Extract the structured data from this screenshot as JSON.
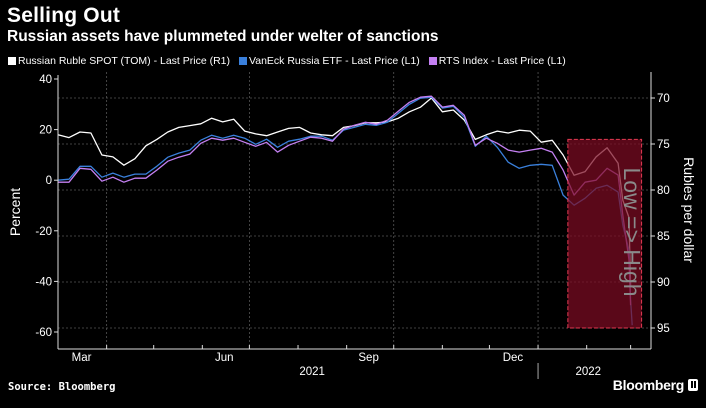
{
  "header": {
    "title": "Selling Out",
    "subtitle": "Russian assets have plummeted under welter of sanctions"
  },
  "footer": {
    "source": "Source: Bloomberg",
    "brand": "Bloomberg"
  },
  "colors": {
    "background": "#000000",
    "ruble": "#ffffff",
    "etf": "#3a80dc",
    "rts": "#c480f2",
    "highlight_fill": "#7d0b22",
    "highlight_border": "#e23a52",
    "annotation": "#8a8a8a"
  },
  "chart_data": {
    "type": "line",
    "title": "Selling Out",
    "subtitle": "Russian assets have plummeted under welter of sanctions",
    "legend_position": "top-left",
    "grid": true,
    "x": [
      "2021-03-01",
      "2021-03-08",
      "2021-03-15",
      "2021-03-22",
      "2021-03-29",
      "2021-04-05",
      "2021-04-12",
      "2021-04-19",
      "2021-04-26",
      "2021-05-03",
      "2021-05-10",
      "2021-05-17",
      "2021-05-24",
      "2021-05-31",
      "2021-06-07",
      "2021-06-14",
      "2021-06-21",
      "2021-06-28",
      "2021-07-05",
      "2021-07-12",
      "2021-07-19",
      "2021-07-26",
      "2021-08-02",
      "2021-08-09",
      "2021-08-16",
      "2021-08-23",
      "2021-08-30",
      "2021-09-06",
      "2021-09-13",
      "2021-09-20",
      "2021-09-27",
      "2021-10-04",
      "2021-10-11",
      "2021-10-18",
      "2021-10-25",
      "2021-11-01",
      "2021-11-08",
      "2021-11-15",
      "2021-11-22",
      "2021-11-29",
      "2021-12-06",
      "2021-12-13",
      "2021-12-20",
      "2021-12-27",
      "2022-01-03",
      "2022-01-10",
      "2022-01-17",
      "2022-01-24",
      "2022-01-31",
      "2022-02-07",
      "2022-02-14",
      "2022-02-21",
      "2022-02-24",
      "2022-02-28",
      "2022-03-01",
      "2022-03-02"
    ],
    "xlim": [
      "2021-03-01",
      "2022-03-14"
    ],
    "x_tick_labels": [
      {
        "label": "Mar",
        "date": "2021-03-16"
      },
      {
        "label": "Jun",
        "date": "2021-06-15"
      },
      {
        "label": "Sep",
        "date": "2021-09-15"
      },
      {
        "label": "Dec",
        "date": "2021-12-16"
      }
    ],
    "x_year_labels": [
      {
        "label": "2021",
        "date": "2021-08-10"
      },
      {
        "label": "2022",
        "date": "2022-02-02"
      }
    ],
    "x_month_ticks": [
      "2021-04-01",
      "2021-05-01",
      "2021-06-01",
      "2021-07-01",
      "2021-08-01",
      "2021-09-01",
      "2021-10-01",
      "2021-11-01",
      "2021-12-01",
      "2022-01-01",
      "2022-02-01",
      "2022-03-01"
    ],
    "x_gridlines": [
      "2021-04-01",
      "2021-07-01",
      "2021-10-01",
      "2022-01-01"
    ],
    "year_separator": "2022-01-01",
    "y_left": {
      "label": "Percent",
      "ticks": [
        40,
        20,
        0,
        -20,
        -40,
        -60
      ],
      "range": [
        -60,
        40
      ]
    },
    "y_right": {
      "label": "Rubles per dollar",
      "ticks": [
        70,
        75,
        80,
        85,
        90,
        95
      ],
      "range": [
        70,
        95
      ],
      "inverted": true,
      "annotation": "Low => High"
    },
    "series": [
      {
        "name": "Russian Ruble SPOT (TOM) - Last Price (R1)",
        "axis": "right",
        "color": "#ffffff",
        "values": [
          74.0,
          74.3,
          73.7,
          73.8,
          76.2,
          76.4,
          77.3,
          76.6,
          75.2,
          74.5,
          73.7,
          73.2,
          73.0,
          72.8,
          72.2,
          72.6,
          72.3,
          73.6,
          73.9,
          74.1,
          73.7,
          73.3,
          73.2,
          73.8,
          74.0,
          74.1,
          73.2,
          73.0,
          72.7,
          72.7,
          72.6,
          72.2,
          71.5,
          71.0,
          70.0,
          71.5,
          71.3,
          72.4,
          74.5,
          74.0,
          73.6,
          73.8,
          73.5,
          73.6,
          74.8,
          74.6,
          76.2,
          78.4,
          78.0,
          76.4,
          75.4,
          77.1,
          81.1,
          83.0,
          90.5,
          null
        ]
      },
      {
        "name": "VanEck Russia ETF - Last Price (L1)",
        "axis": "left",
        "color": "#3a80dc",
        "values": [
          0.0,
          0.4,
          5.5,
          5.5,
          1.2,
          2.8,
          1.2,
          2.4,
          2.4,
          5.5,
          9.1,
          10.7,
          11.9,
          15.8,
          17.8,
          16.6,
          17.8,
          16.6,
          14.2,
          16.2,
          13.0,
          15.4,
          16.2,
          17.4,
          17.4,
          15.8,
          19.8,
          20.9,
          22.1,
          21.7,
          22.9,
          26.5,
          30.0,
          32.4,
          32.8,
          28.5,
          29.2,
          24.9,
          13.4,
          17.4,
          13.0,
          7.1,
          4.7,
          5.9,
          6.3,
          5.9,
          -5.9,
          -9.9,
          -7.1,
          -3.2,
          -2.0,
          -4.7,
          -17.8,
          -27.7,
          -47.4,
          -57.3
        ]
      },
      {
        "name": "RTS Index - Last Price (L1)",
        "axis": "left",
        "color": "#c480f2",
        "values": [
          -0.8,
          -0.8,
          4.7,
          4.3,
          -0.4,
          1.2,
          -0.8,
          0.8,
          0.8,
          4.0,
          7.5,
          9.1,
          10.3,
          14.6,
          16.6,
          15.8,
          16.6,
          15.0,
          13.4,
          15.0,
          11.1,
          13.8,
          15.4,
          17.0,
          16.6,
          15.4,
          20.2,
          21.7,
          22.9,
          22.1,
          23.7,
          27.3,
          30.8,
          32.8,
          33.2,
          28.9,
          29.6,
          25.7,
          13.8,
          16.6,
          14.6,
          11.9,
          11.1,
          11.9,
          12.6,
          11.1,
          4.0,
          -5.9,
          -0.8,
          0.0,
          4.7,
          2.0,
          -13.8,
          -31.6,
          -49.4,
          null
        ]
      }
    ],
    "highlight": {
      "x_range": [
        "2022-01-20",
        "2022-03-08"
      ],
      "y_right_range": [
        74.5,
        95
      ]
    }
  }
}
